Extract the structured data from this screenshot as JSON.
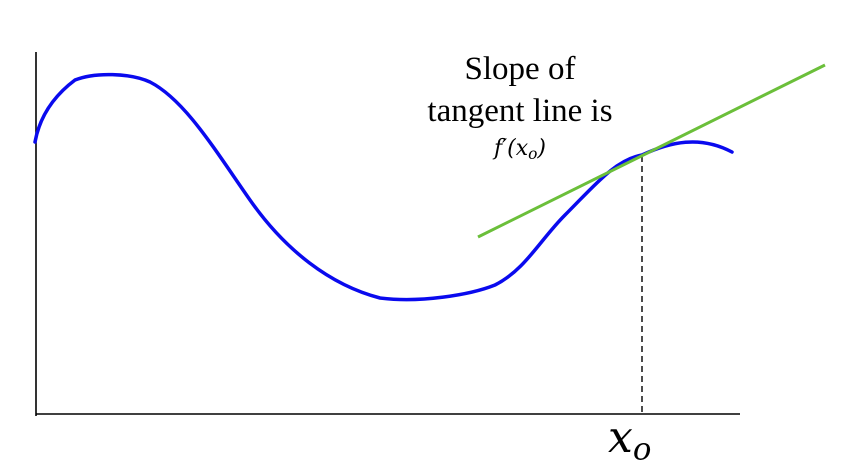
{
  "caption": {
    "line1": "Slope of",
    "line2": "tangent line is",
    "formula": "f′(x",
    "formula_sub": "o",
    "formula_close": ")"
  },
  "point_label": {
    "base": "x",
    "sub": "o"
  },
  "colors": {
    "curve": "#0a0aee",
    "tangent": "#6bbf3a",
    "axes": "#000000",
    "guide": "#000000"
  }
}
